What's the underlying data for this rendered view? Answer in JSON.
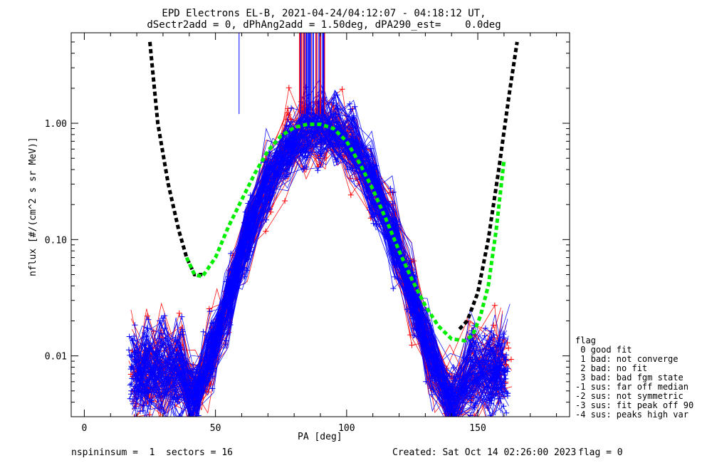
{
  "chart_data": {
    "type": "line",
    "title": "EPD Electrons EL-B, 2021-04-24/04:12:07 - 04:18:12 UT,",
    "subtitle": "dSectr2add = 0, dPhAng2add = 1.50deg, dPA290_est=    0.0deg",
    "xlabel": "PA [deg]",
    "ylabel": "nflux [#/(cm^2 s sr MeV)]",
    "xlim": [
      -5,
      185
    ],
    "ylim": [
      0.003,
      6
    ],
    "yscale": "log",
    "x_ticks": [
      0,
      50,
      100,
      150
    ],
    "y_ticks": [
      0.01,
      0.1,
      1.0
    ],
    "y_tick_labels": [
      "0.01",
      "0.10",
      "1.00"
    ],
    "grid": false,
    "series": [
      {
        "color": "#000000",
        "style": "dashed",
        "x": [
          25,
          28,
          32,
          36,
          39,
          42,
          45
        ],
        "y": [
          5.0,
          1.0,
          0.3,
          0.12,
          0.07,
          0.05,
          0.05
        ]
      },
      {
        "color": "#000000",
        "style": "dashed",
        "x": [
          143,
          146,
          150,
          154,
          158,
          162,
          165
        ],
        "y": [
          0.017,
          0.02,
          0.035,
          0.1,
          0.4,
          1.8,
          5.0
        ]
      },
      {
        "color": "#00ee00",
        "style": "dashed",
        "x": [
          39,
          42,
          45,
          50,
          55,
          60,
          65,
          70,
          75,
          80,
          85,
          90,
          95,
          100,
          105,
          110,
          115,
          120,
          125,
          130,
          135,
          140,
          145,
          148,
          151,
          154,
          157,
          160
        ],
        "y": [
          0.07,
          0.05,
          0.048,
          0.07,
          0.13,
          0.22,
          0.37,
          0.58,
          0.78,
          0.92,
          0.98,
          0.98,
          0.9,
          0.7,
          0.45,
          0.27,
          0.15,
          0.08,
          0.045,
          0.027,
          0.018,
          0.014,
          0.0135,
          0.015,
          0.022,
          0.04,
          0.12,
          0.48
        ]
      }
    ],
    "flag_legend": {
      "heading": "flag",
      "entries": [
        " 0 good fit",
        " 1 bad: not converge",
        " 2 bad: no fit",
        " 3 bad: bad fgm state",
        "-1 sus: far off median",
        "-2 sus: not symmetric",
        "-3 sus: fit peak off 90",
        "-4 sus: peaks high var"
      ]
    }
  },
  "footer": {
    "left": "nspininsum =  1  sectors = 16",
    "created": "Created: Sat Oct 14 02:26:00 2023",
    "flag": "flag = 0"
  },
  "colors": {
    "data_red": "#ff0000",
    "data_blue": "#0000ff",
    "fit": "#00ee00",
    "model": "#000000"
  }
}
